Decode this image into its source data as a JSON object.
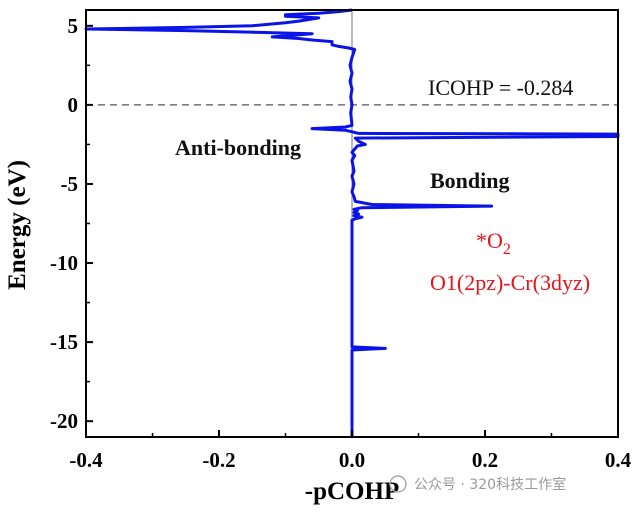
{
  "chart_data": {
    "type": "line",
    "xlabel": "-pCOHP",
    "ylabel": "Energy (eV)",
    "xlim": [
      -0.4,
      0.4
    ],
    "ylim": [
      -21,
      6
    ],
    "x_ticks": [
      -0.4,
      -0.2,
      0.0,
      0.2,
      0.4
    ],
    "x_tick_labels": [
      "-0.4",
      "-0.2",
      "0.0",
      "0.2",
      "0.4"
    ],
    "y_ticks": [
      5,
      0,
      -5,
      -10,
      -15,
      -20
    ],
    "y_tick_labels": [
      "5",
      "0",
      "-5",
      "-10",
      "-15",
      "-20"
    ],
    "fermi_level": 0,
    "series": [
      {
        "color": "#0a14e6",
        "points": [
          [
            0.0,
            -21.0
          ],
          [
            0.0,
            -15.6
          ],
          [
            0.0,
            -15.5
          ],
          [
            0.05,
            -15.4
          ],
          [
            0.0,
            -15.3
          ],
          [
            0.0,
            -7.3
          ],
          [
            0.005,
            -7.2
          ],
          [
            0.015,
            -7.1
          ],
          [
            0.003,
            -7.0
          ],
          [
            0.01,
            -6.9
          ],
          [
            0.003,
            -6.8
          ],
          [
            0.008,
            -6.7
          ],
          [
            0.003,
            -6.6
          ],
          [
            0.015,
            -6.5
          ],
          [
            0.21,
            -6.4
          ],
          [
            0.03,
            -6.3
          ],
          [
            0.005,
            -6.1
          ],
          [
            0.003,
            -5.8
          ],
          [
            0.0,
            -5.5
          ],
          [
            0.003,
            -5.0
          ],
          [
            0.0,
            -4.5
          ],
          [
            0.003,
            -4.2
          ],
          [
            0.0,
            -3.5
          ],
          [
            0.004,
            -3.2
          ],
          [
            0.0,
            -3.0
          ],
          [
            0.008,
            -2.6
          ],
          [
            0.02,
            -2.5
          ],
          [
            0.01,
            -2.3
          ],
          [
            0.005,
            -2.1
          ],
          [
            0.4,
            -2.0
          ],
          [
            0.4,
            -1.85
          ],
          [
            0.01,
            -1.8
          ],
          [
            0.0,
            -1.7
          ],
          [
            -0.01,
            -1.6
          ],
          [
            -0.06,
            -1.5
          ],
          [
            -0.01,
            -1.4
          ],
          [
            0.0,
            -1.3
          ],
          [
            -0.002,
            -0.5
          ],
          [
            0.0,
            0.0
          ],
          [
            -0.002,
            0.5
          ],
          [
            0.0,
            1.0
          ],
          [
            -0.003,
            1.5
          ],
          [
            0.0,
            2.0
          ],
          [
            -0.003,
            2.5
          ],
          [
            0.0,
            3.0
          ],
          [
            0.004,
            3.5
          ],
          [
            -0.005,
            3.6
          ],
          [
            -0.02,
            3.7
          ],
          [
            -0.03,
            3.8
          ],
          [
            -0.03,
            4.0
          ],
          [
            -0.06,
            4.1
          ],
          [
            -0.08,
            4.2
          ],
          [
            -0.12,
            4.3
          ],
          [
            -0.06,
            4.5
          ],
          [
            -0.25,
            4.7
          ],
          [
            -0.4,
            4.8
          ],
          [
            -0.25,
            4.9
          ],
          [
            -0.15,
            5.0
          ],
          [
            -0.1,
            5.2
          ],
          [
            -0.08,
            5.3
          ],
          [
            -0.05,
            5.5
          ],
          [
            -0.1,
            5.6
          ],
          [
            -0.1,
            5.7
          ],
          [
            -0.05,
            5.8
          ],
          [
            -0.02,
            5.9
          ],
          [
            0.0,
            6.0
          ]
        ]
      }
    ],
    "annotations": {
      "icohp": "ICOHP = -0.284",
      "anti_bonding": "Anti-bonding",
      "bonding": "Bonding",
      "species_prefix": "*O",
      "species_sub": "2",
      "orbital_pair": "O1(2pz)-Cr(3dyz)"
    }
  },
  "watermark": "公众号 · 320科技工作室"
}
